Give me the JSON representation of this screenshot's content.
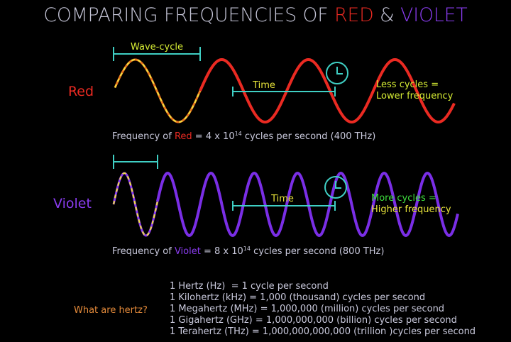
{
  "title": {
    "prefix": "COMPARING FREQUENCIES OF ",
    "red": "RED",
    "amp": " & ",
    "violet": "VIOLET"
  },
  "red": {
    "label": "Red",
    "cycle_label": "Wave-cycle",
    "time_label": "Time",
    "note": [
      "Less cycles =",
      "Lower frequency"
    ],
    "frequency": {
      "prefix": "Frequency of ",
      "name": "Red",
      "equals": " = 4 x 10",
      "exponent": "14",
      "suffix": " cycles per second (400 THz)"
    }
  },
  "violet": {
    "label": "Violet",
    "time_label": "Time",
    "note": [
      "More cycles =",
      "Higher frequency"
    ],
    "frequency": {
      "prefix": "Frequency of ",
      "name": "Violet",
      "equals": " = 8 x 10",
      "exponent": "14",
      "suffix": " cycles per second (800 THz)"
    }
  },
  "hertz": {
    "question": "What are hertz?",
    "lines": [
      "1 Hertz (Hz)  = 1 cycle per second",
      "1 Kilohertz (kHz) = 1,000 (thousand) cycles per second",
      "1 Megahertz (MHz) = 1,000,000 (million) cycles per second",
      "1 Gigahertz (GHz) = 1,000,000,000 (billion) cycles per second",
      "1 Terahertz (THz) = 1,000,000,000,000 (trillion )cycles per second"
    ]
  }
}
